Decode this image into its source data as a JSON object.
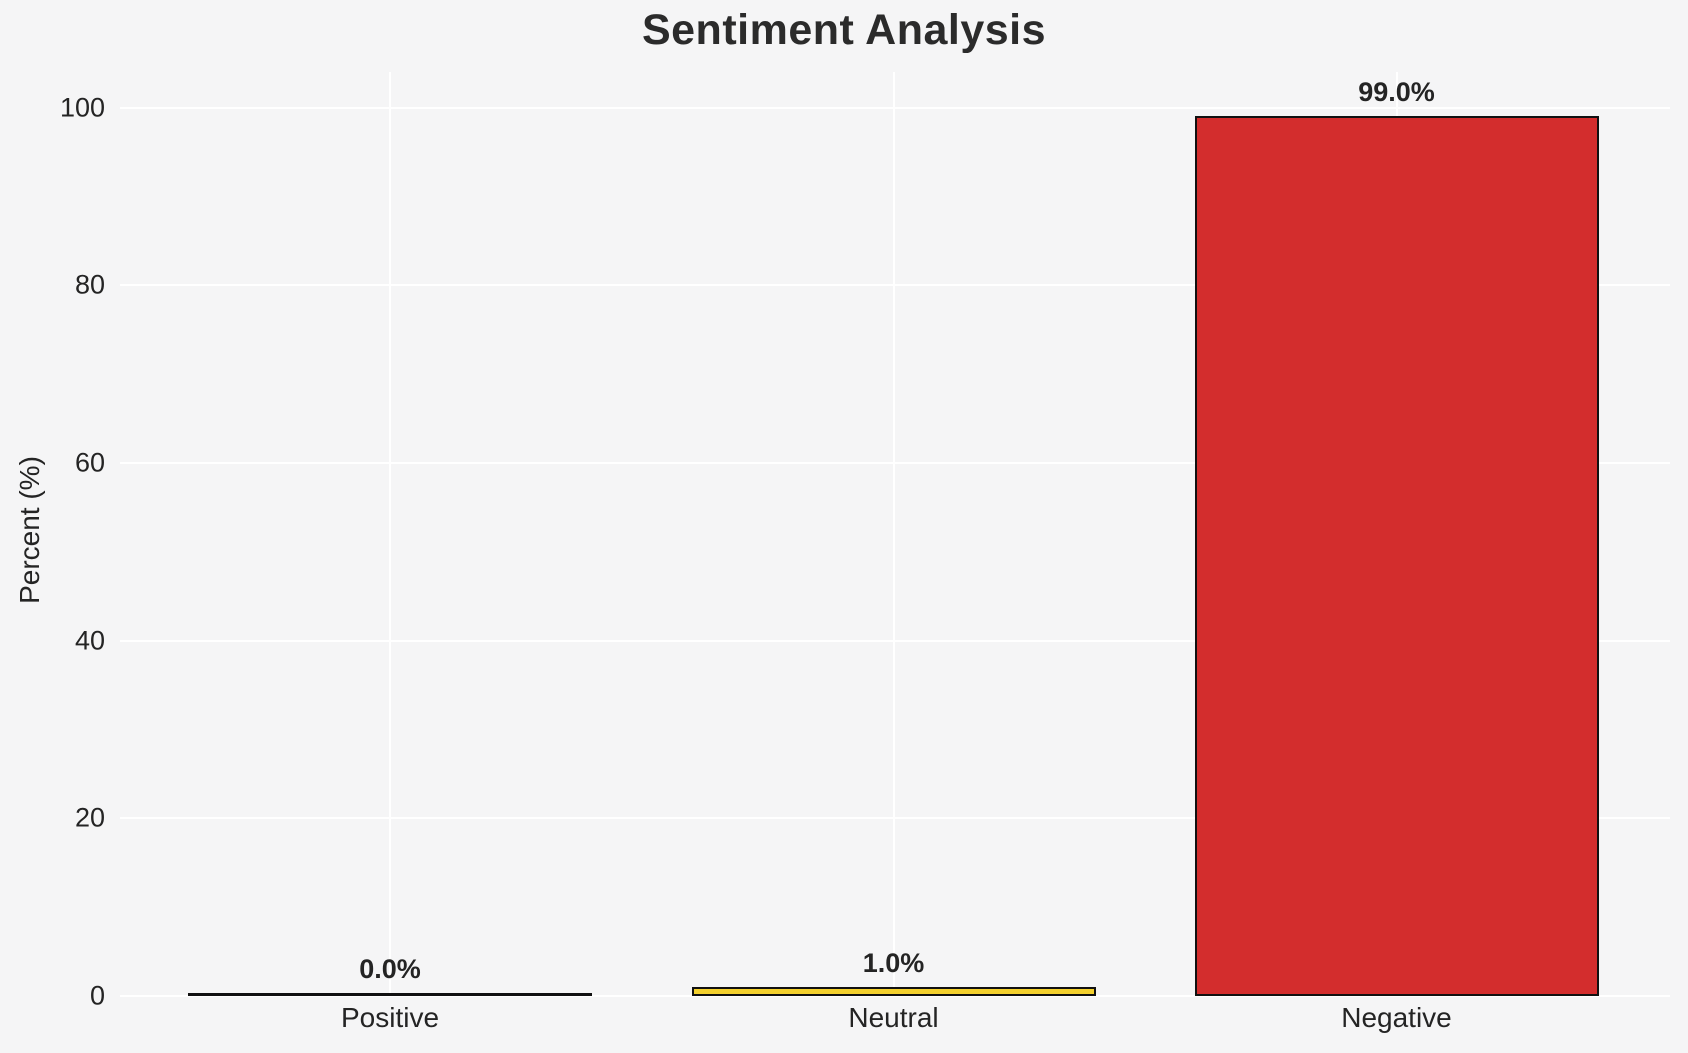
{
  "chart_data": {
    "type": "bar",
    "title": "Sentiment Analysis",
    "xlabel": "",
    "ylabel": "Percent (%)",
    "categories": [
      "Positive",
      "Neutral",
      "Negative"
    ],
    "values": [
      0.0,
      1.0,
      99.0
    ],
    "bar_labels": [
      "0.0%",
      "1.0%",
      "99.0%"
    ],
    "bar_colors": [
      "none",
      "#f3d02e",
      "#d32d2d"
    ],
    "bar_edge_color": "#111111",
    "yticks": [
      0,
      20,
      40,
      60,
      80,
      100
    ],
    "ytick_labels": [
      "0",
      "20",
      "40",
      "60",
      "80",
      "100"
    ],
    "ylim": [
      0,
      104
    ],
    "grid": true,
    "grid_color": "#ffffff",
    "background_color": "#f5f5f6",
    "text_color": "#242424",
    "legend_position": "none"
  }
}
